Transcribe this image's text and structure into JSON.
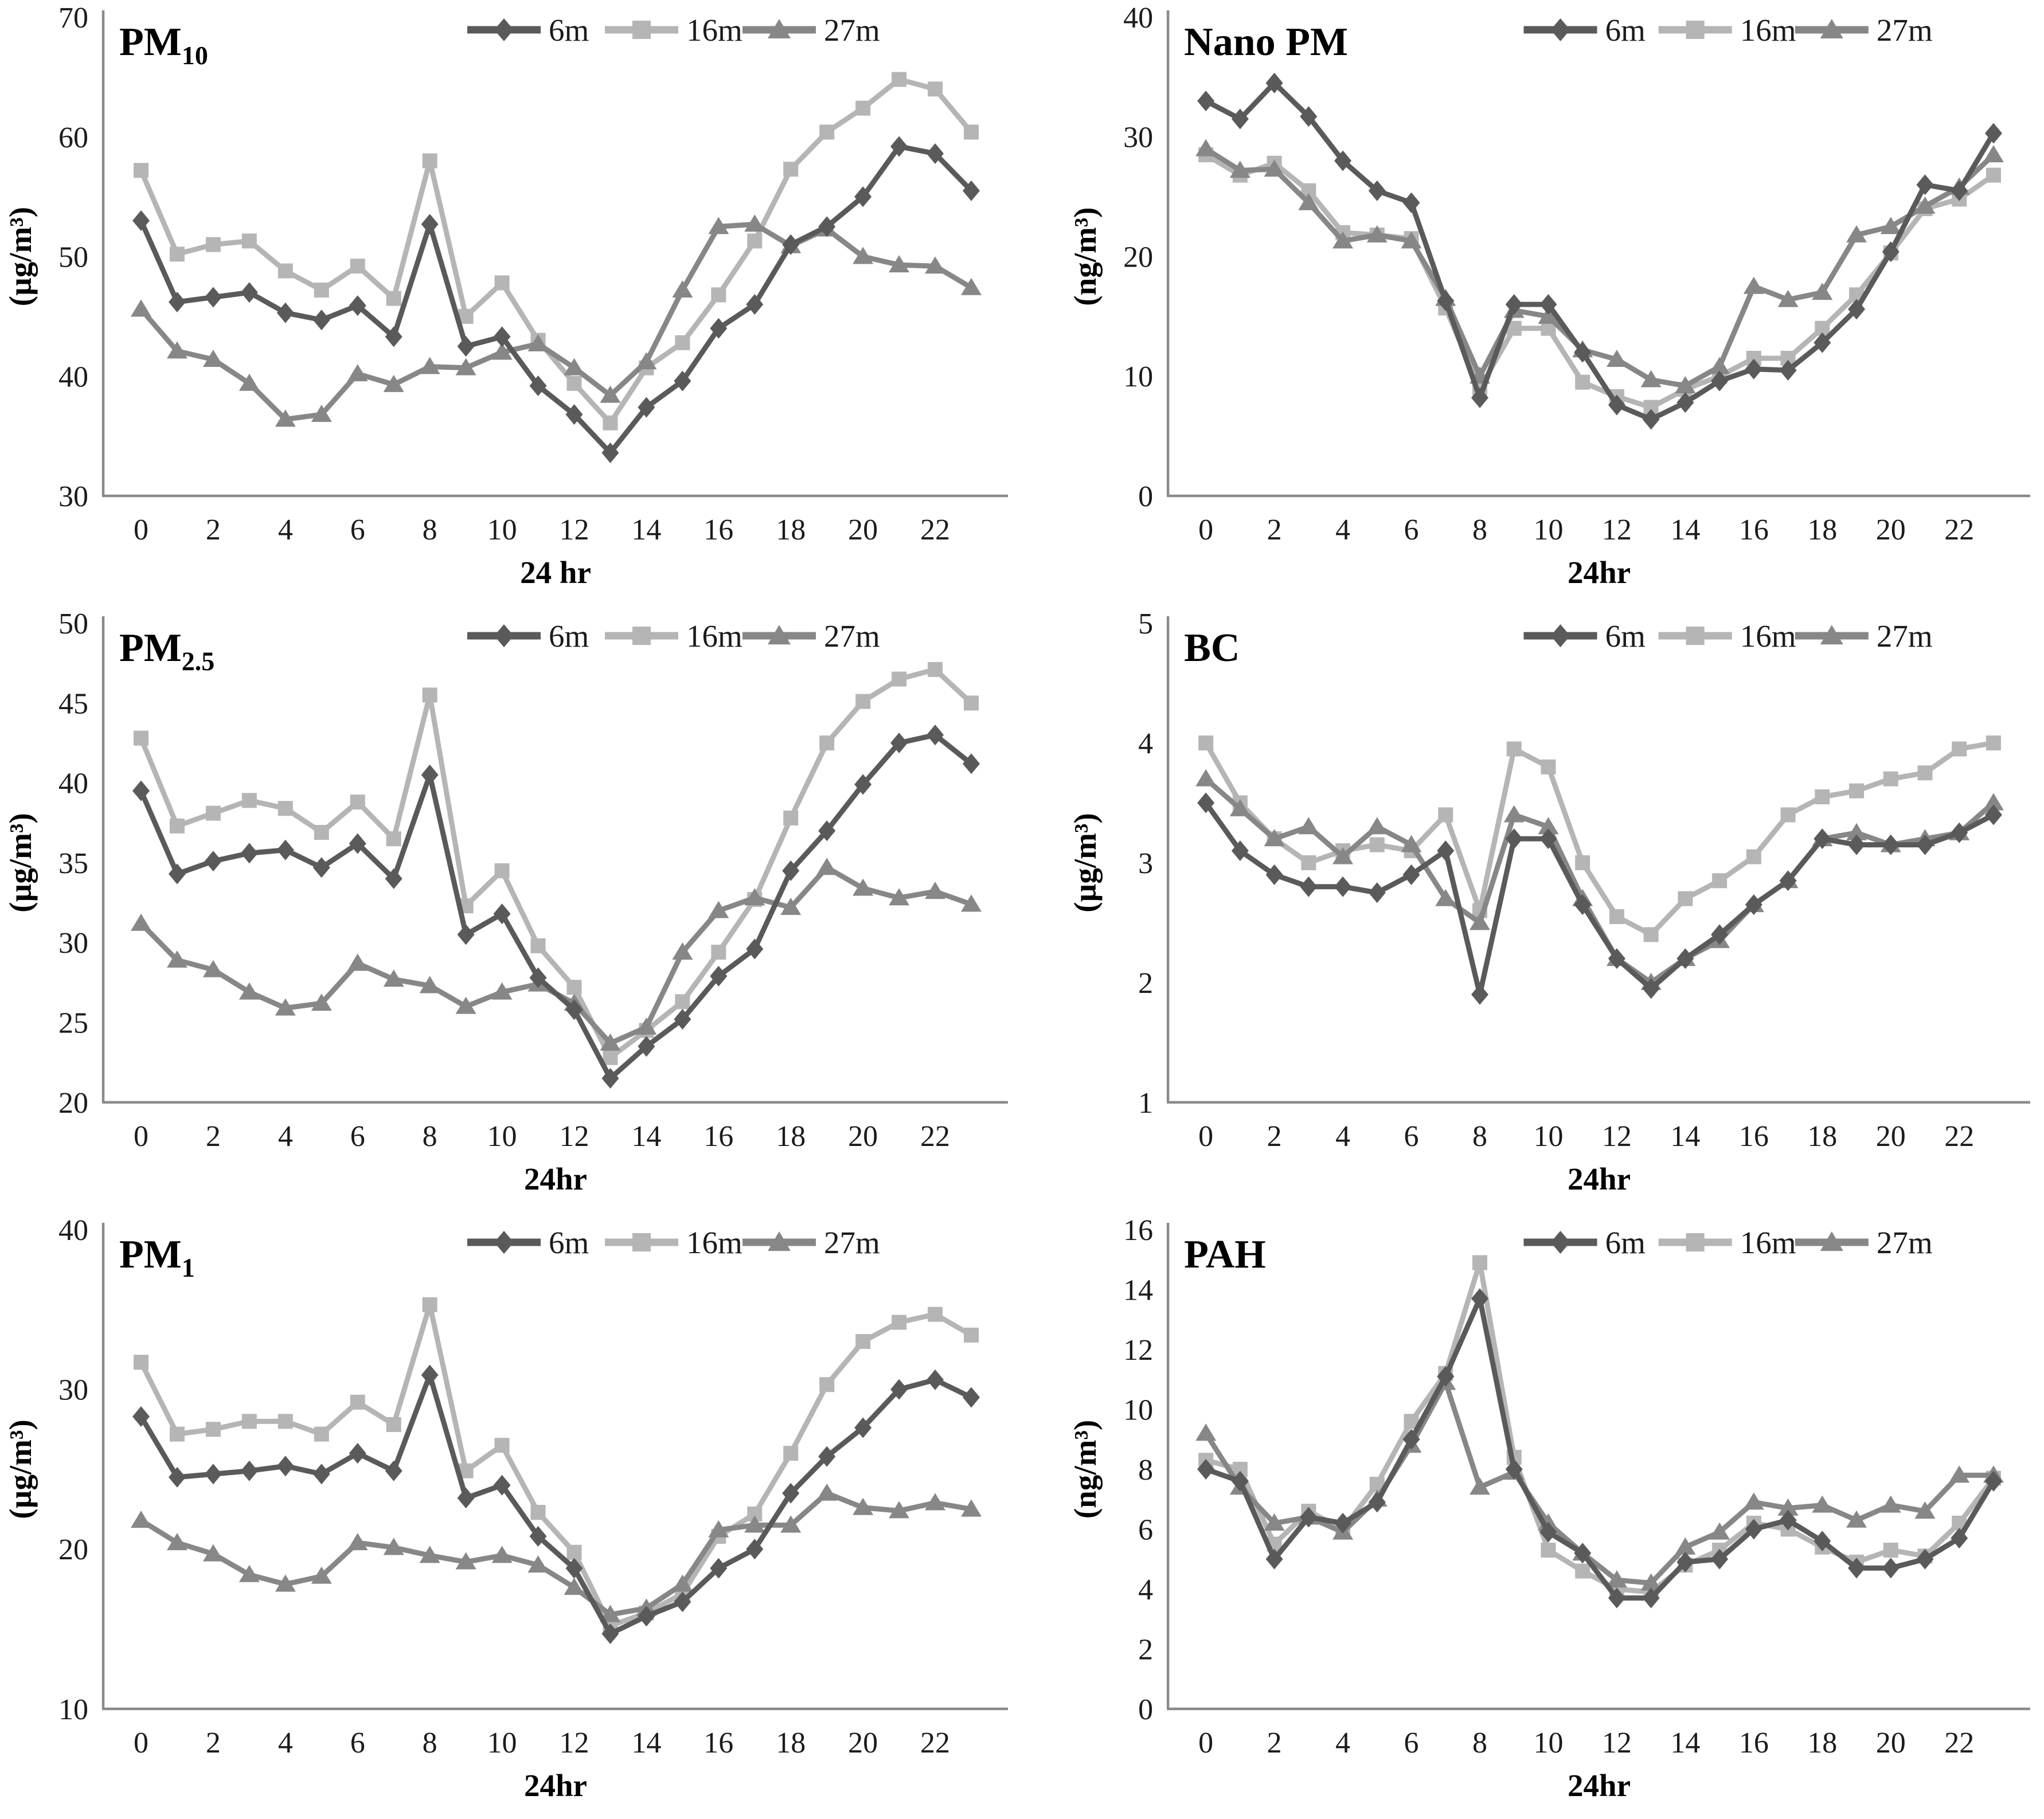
{
  "figure": {
    "background": "#ffffff",
    "description": "Diurnal variation line charts of six pollutants measured at three heights"
  },
  "styles": {
    "axis_color": "#8a8a8a",
    "tick_text_color": "#1b1b1b",
    "title_color": "#000000",
    "series_colors": {
      "6m": "#5a5a5a",
      "16m": "#b5b5b5",
      "27m": "#878787"
    }
  },
  "legend": {
    "items": [
      {
        "label": "6m",
        "marker": "diamond-icon",
        "color": "#5a5a5a"
      },
      {
        "label": "16m",
        "marker": "square-icon",
        "color": "#b5b5b5"
      },
      {
        "label": "27m",
        "marker": "triangle-icon",
        "color": "#878787"
      }
    ]
  },
  "chart_data": [
    {
      "id": "pm10",
      "type": "line",
      "title": "PM",
      "title_sub": "10",
      "ylabel": "(µg/m³)",
      "xlabel": "24 hr",
      "ylim": [
        30,
        70
      ],
      "yticks": [
        30,
        40,
        50,
        60,
        70
      ],
      "xticks": [
        0,
        2,
        4,
        6,
        8,
        10,
        12,
        14,
        16,
        18,
        20,
        22
      ],
      "x": [
        0,
        1,
        2,
        3,
        4,
        5,
        6,
        7,
        8,
        9,
        10,
        11,
        12,
        13,
        14,
        15,
        16,
        17,
        18,
        19,
        20,
        21,
        22,
        23
      ],
      "legend_position": "top-right",
      "grid": false,
      "col": "left",
      "series": [
        {
          "name": "6m",
          "marker": "diamond",
          "color": "#5a5a5a",
          "values": [
            53.0,
            46.2,
            46.6,
            47.0,
            45.3,
            44.7,
            45.9,
            43.3,
            52.7,
            42.5,
            43.3,
            39.2,
            36.8,
            33.6,
            37.4,
            39.6,
            44.0,
            46.0,
            51.0,
            52.5,
            55.0,
            59.2,
            58.6,
            55.5
          ]
        },
        {
          "name": "16m",
          "marker": "square",
          "color": "#b5b5b5",
          "values": [
            57.2,
            50.2,
            51.0,
            51.3,
            48.8,
            47.2,
            49.2,
            46.5,
            58.0,
            45.0,
            47.8,
            43.0,
            39.4,
            36.1,
            40.7,
            42.8,
            46.8,
            51.3,
            57.3,
            60.4,
            62.4,
            64.8,
            64.0,
            60.4
          ]
        },
        {
          "name": "27m",
          "marker": "triangle",
          "color": "#878787",
          "values": [
            45.6,
            42.1,
            41.4,
            39.4,
            36.4,
            36.8,
            40.2,
            39.3,
            40.8,
            40.7,
            42.0,
            42.7,
            40.7,
            38.4,
            41.2,
            47.2,
            52.5,
            52.7,
            50.9,
            52.3,
            50.0,
            49.3,
            49.2,
            47.4
          ]
        }
      ]
    },
    {
      "id": "nanopm",
      "type": "line",
      "title": "Nano PM",
      "title_sub": "",
      "ylabel": "(ng/m³)",
      "xlabel": "24hr",
      "ylim": [
        0,
        40
      ],
      "yticks": [
        0,
        10,
        20,
        30,
        40
      ],
      "xticks": [
        0,
        2,
        4,
        6,
        8,
        10,
        12,
        14,
        16,
        18,
        20,
        22
      ],
      "x": [
        0,
        1,
        2,
        3,
        4,
        5,
        6,
        7,
        8,
        9,
        10,
        11,
        12,
        13,
        14,
        15,
        16,
        17,
        18,
        19,
        20,
        21,
        22,
        23
      ],
      "legend_position": "top-right",
      "grid": false,
      "col": "right",
      "series": [
        {
          "name": "6m",
          "marker": "diamond",
          "color": "#5a5a5a",
          "values": [
            33.0,
            31.5,
            34.5,
            31.7,
            28.0,
            25.5,
            24.5,
            16.3,
            8.2,
            16.0,
            16.0,
            12.0,
            7.6,
            6.4,
            7.8,
            9.6,
            10.6,
            10.5,
            12.8,
            15.6,
            20.4,
            26.0,
            25.5,
            30.3
          ]
        },
        {
          "name": "16m",
          "marker": "square",
          "color": "#b5b5b5",
          "values": [
            28.5,
            26.8,
            27.8,
            25.5,
            22.0,
            21.8,
            21.5,
            15.7,
            9.0,
            14.0,
            14.0,
            9.5,
            8.3,
            7.4,
            8.9,
            10.0,
            11.5,
            11.5,
            14.0,
            16.8,
            20.3,
            24.0,
            24.8,
            26.8
          ]
        },
        {
          "name": "27m",
          "marker": "triangle",
          "color": "#878787",
          "values": [
            29.0,
            27.2,
            27.3,
            24.5,
            21.3,
            21.8,
            21.3,
            16.5,
            10.0,
            15.5,
            15.0,
            12.2,
            11.4,
            9.7,
            9.2,
            10.8,
            17.5,
            16.4,
            17.0,
            21.8,
            22.5,
            24.2,
            25.8,
            28.5
          ]
        }
      ]
    },
    {
      "id": "pm25",
      "type": "line",
      "title": "PM",
      "title_sub": "2.5",
      "ylabel": "(µg/m³)",
      "xlabel": "24hr",
      "ylim": [
        20,
        50
      ],
      "yticks": [
        20,
        25,
        30,
        35,
        40,
        45,
        50
      ],
      "xticks": [
        0,
        2,
        4,
        6,
        8,
        10,
        12,
        14,
        16,
        18,
        20,
        22
      ],
      "x": [
        0,
        1,
        2,
        3,
        4,
        5,
        6,
        7,
        8,
        9,
        10,
        11,
        12,
        13,
        14,
        15,
        16,
        17,
        18,
        19,
        20,
        21,
        22,
        23
      ],
      "legend_position": "top-right",
      "grid": false,
      "col": "left",
      "series": [
        {
          "name": "6m",
          "marker": "diamond",
          "color": "#5a5a5a",
          "values": [
            39.5,
            34.3,
            35.1,
            35.6,
            35.8,
            34.7,
            36.2,
            34.0,
            40.5,
            30.5,
            31.8,
            27.8,
            25.8,
            21.5,
            23.5,
            25.2,
            27.9,
            29.6,
            34.5,
            37.0,
            39.9,
            42.5,
            43.0,
            41.2
          ]
        },
        {
          "name": "16m",
          "marker": "square",
          "color": "#b5b5b5",
          "values": [
            42.8,
            37.3,
            38.1,
            38.9,
            38.4,
            36.9,
            38.8,
            36.5,
            45.5,
            32.3,
            34.5,
            29.8,
            27.2,
            22.8,
            24.5,
            26.3,
            29.4,
            32.7,
            37.8,
            42.5,
            45.1,
            46.5,
            47.1,
            45.0
          ]
        },
        {
          "name": "27m",
          "marker": "triangle",
          "color": "#878787",
          "values": [
            31.2,
            28.9,
            28.3,
            26.9,
            25.9,
            26.2,
            28.7,
            27.7,
            27.3,
            26.0,
            26.9,
            27.4,
            26.2,
            23.7,
            24.7,
            29.4,
            32.0,
            32.8,
            32.2,
            34.7,
            33.4,
            32.8,
            33.2,
            32.4
          ]
        }
      ]
    },
    {
      "id": "bc",
      "type": "line",
      "title": "BC",
      "title_sub": "",
      "ylabel": "(µg/m³)",
      "xlabel": "24hr",
      "ylim": [
        1,
        5
      ],
      "yticks": [
        1,
        2,
        3,
        4,
        5
      ],
      "xticks": [
        0,
        2,
        4,
        6,
        8,
        10,
        12,
        14,
        16,
        18,
        20,
        22
      ],
      "x": [
        0,
        1,
        2,
        3,
        4,
        5,
        6,
        7,
        8,
        9,
        10,
        11,
        12,
        13,
        14,
        15,
        16,
        17,
        18,
        19,
        20,
        21,
        22,
        23
      ],
      "legend_position": "top-right",
      "grid": false,
      "col": "right",
      "series": [
        {
          "name": "6m",
          "marker": "diamond",
          "color": "#5a5a5a",
          "values": [
            3.5,
            3.1,
            2.9,
            2.8,
            2.8,
            2.75,
            2.9,
            3.1,
            1.9,
            3.2,
            3.2,
            2.65,
            2.2,
            1.95,
            2.2,
            2.4,
            2.65,
            2.85,
            3.2,
            3.15,
            3.15,
            3.15,
            3.25,
            3.4
          ]
        },
        {
          "name": "16m",
          "marker": "square",
          "color": "#b5b5b5",
          "values": [
            4.0,
            3.5,
            3.2,
            3.0,
            3.1,
            3.15,
            3.1,
            3.4,
            2.6,
            3.95,
            3.8,
            3.0,
            2.55,
            2.4,
            2.7,
            2.85,
            3.05,
            3.4,
            3.55,
            3.6,
            3.7,
            3.75,
            3.95,
            4.0
          ]
        },
        {
          "name": "27m",
          "marker": "triangle",
          "color": "#878787",
          "values": [
            3.7,
            3.45,
            3.2,
            3.3,
            3.05,
            3.3,
            3.15,
            2.7,
            2.5,
            3.4,
            3.3,
            2.7,
            2.2,
            2.0,
            2.2,
            2.35,
            2.65,
            2.85,
            3.2,
            3.25,
            3.15,
            3.2,
            3.25,
            3.5
          ]
        }
      ]
    },
    {
      "id": "pm1",
      "type": "line",
      "title": "PM",
      "title_sub": "1",
      "ylabel": "(µg/m³)",
      "xlabel": "24hr",
      "ylim": [
        10,
        40
      ],
      "yticks": [
        10,
        20,
        30,
        40
      ],
      "xticks": [
        0,
        2,
        4,
        6,
        8,
        10,
        12,
        14,
        16,
        18,
        20,
        22
      ],
      "x": [
        0,
        1,
        2,
        3,
        4,
        5,
        6,
        7,
        8,
        9,
        10,
        11,
        12,
        13,
        14,
        15,
        16,
        17,
        18,
        19,
        20,
        21,
        22,
        23
      ],
      "legend_position": "top-right",
      "grid": false,
      "col": "left",
      "series": [
        {
          "name": "6m",
          "marker": "diamond",
          "color": "#5a5a5a",
          "values": [
            28.3,
            24.5,
            24.7,
            24.9,
            25.2,
            24.7,
            26.0,
            24.9,
            30.9,
            23.2,
            24.0,
            20.8,
            18.8,
            14.7,
            15.8,
            16.7,
            18.8,
            20.0,
            23.5,
            25.8,
            27.6,
            30.0,
            30.6,
            29.5
          ]
        },
        {
          "name": "16m",
          "marker": "square",
          "color": "#b5b5b5",
          "values": [
            31.7,
            27.2,
            27.5,
            28.0,
            28.0,
            27.2,
            29.2,
            27.8,
            35.3,
            24.9,
            26.5,
            22.3,
            19.8,
            15.2,
            16.0,
            17.2,
            20.8,
            22.2,
            26.0,
            30.3,
            33.0,
            34.2,
            34.7,
            33.4
          ]
        },
        {
          "name": "27m",
          "marker": "triangle",
          "color": "#878787",
          "values": [
            21.8,
            20.4,
            19.7,
            18.4,
            17.8,
            18.3,
            20.4,
            20.1,
            19.6,
            19.2,
            19.6,
            19.0,
            17.6,
            15.9,
            16.3,
            17.8,
            21.2,
            21.5,
            21.5,
            23.5,
            22.6,
            22.4,
            22.9,
            22.5
          ]
        }
      ]
    },
    {
      "id": "pah",
      "type": "line",
      "title": "PAH",
      "title_sub": "",
      "ylabel": "(ng/m³)",
      "xlabel": "24hr",
      "ylim": [
        0,
        16
      ],
      "yticks": [
        0,
        2,
        4,
        6,
        8,
        10,
        12,
        14,
        16
      ],
      "xticks": [
        0,
        2,
        4,
        6,
        8,
        10,
        12,
        14,
        16,
        18,
        20,
        22
      ],
      "x": [
        0,
        1,
        2,
        3,
        4,
        5,
        6,
        7,
        8,
        9,
        10,
        11,
        12,
        13,
        14,
        15,
        16,
        17,
        18,
        19,
        20,
        21,
        22,
        23
      ],
      "legend_position": "top-right",
      "grid": false,
      "col": "right",
      "series": [
        {
          "name": "6m",
          "marker": "diamond",
          "color": "#5a5a5a",
          "values": [
            8.0,
            7.6,
            5.0,
            6.4,
            6.2,
            6.9,
            9.0,
            11.1,
            13.7,
            8.0,
            5.9,
            5.2,
            3.7,
            3.7,
            4.9,
            5.0,
            6.0,
            6.3,
            5.6,
            4.7,
            4.7,
            5.0,
            5.7,
            7.6
          ]
        },
        {
          "name": "16m",
          "marker": "square",
          "color": "#b5b5b5",
          "values": [
            8.3,
            8.0,
            5.5,
            6.6,
            6.0,
            7.5,
            9.6,
            11.2,
            14.9,
            8.4,
            5.3,
            4.6,
            4.0,
            3.9,
            4.8,
            5.3,
            6.2,
            6.0,
            5.4,
            4.9,
            5.3,
            5.1,
            6.2,
            7.7
          ]
        },
        {
          "name": "27m",
          "marker": "triangle",
          "color": "#878787",
          "values": [
            9.2,
            7.4,
            6.2,
            6.4,
            5.9,
            7.0,
            8.8,
            10.9,
            7.4,
            7.9,
            6.2,
            5.2,
            4.3,
            4.2,
            5.4,
            5.9,
            6.9,
            6.7,
            6.8,
            6.3,
            6.8,
            6.6,
            7.8,
            7.8
          ]
        }
      ]
    }
  ]
}
